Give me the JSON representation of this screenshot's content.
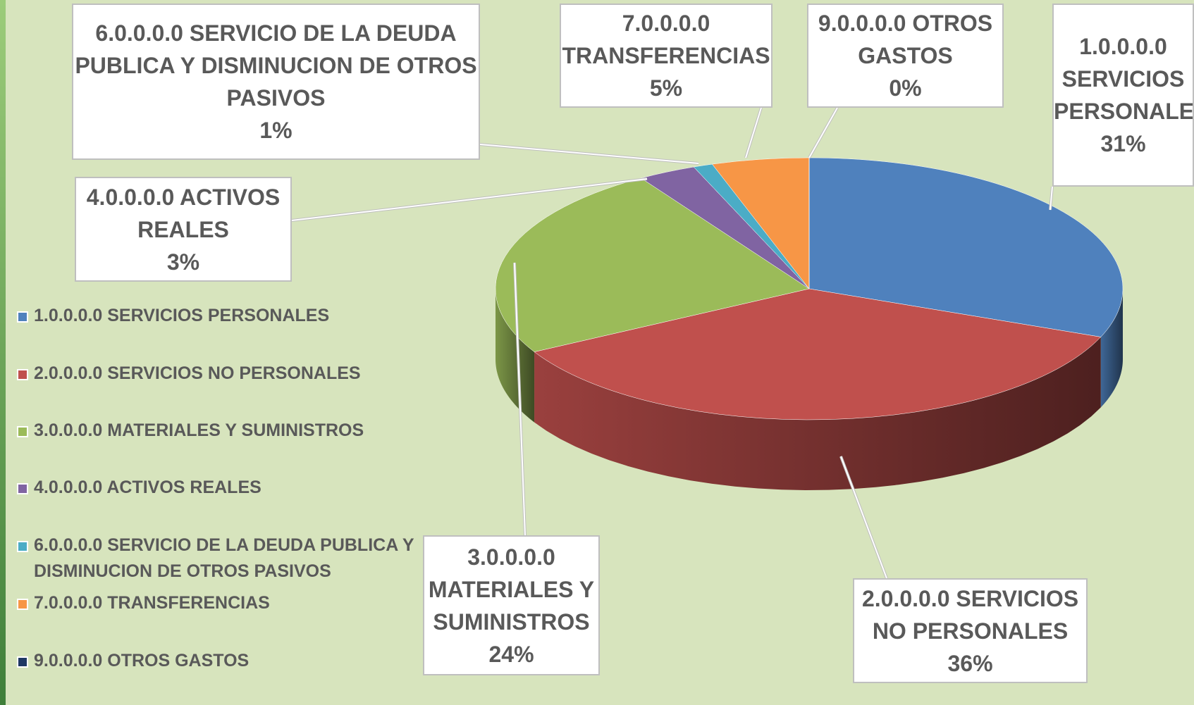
{
  "chart_data": {
    "type": "pie3d",
    "categories": [
      "1.0.0.0.0 SERVICIOS PERSONALES",
      "2.0.0.0.0 SERVICIOS NO PERSONALES",
      "3.0.0.0.0 MATERIALES Y SUMINISTROS",
      "4.0.0.0.0 ACTIVOS REALES",
      "6.0.0.0.0 SERVICIO DE LA DEUDA PUBLICA Y DISMINUCION DE OTROS PASIVOS",
      "7.0.0.0.0 TRANSFERENCIAS",
      "9.0.0.0.0 OTROS GASTOS"
    ],
    "values": [
      31,
      36,
      24,
      3,
      1,
      5,
      0
    ],
    "value_labels": [
      "31%",
      "36%",
      "24%",
      "3%",
      "1%",
      "5%",
      "0%"
    ],
    "colors": [
      "#4f81bd",
      "#c0504d",
      "#9bbb59",
      "#8064a2",
      "#4bacc6",
      "#f79646",
      "#1f3864"
    ],
    "legend": "left"
  }
}
